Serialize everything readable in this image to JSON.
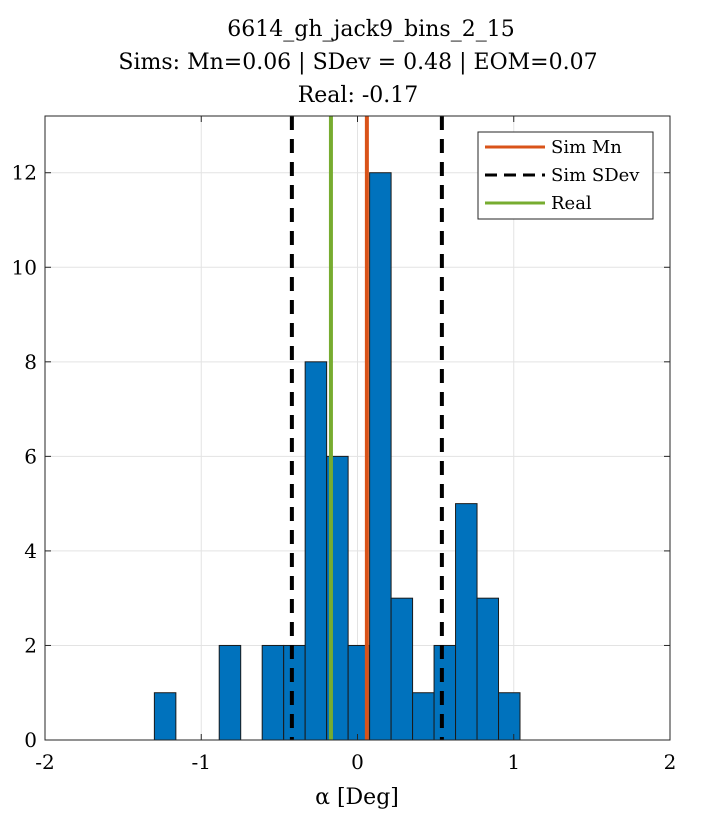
{
  "chart_data": {
    "type": "bar",
    "title": "6614_gh_jack9_bins_2_15",
    "subtitle_lines": [
      "Sims: Mn=0.06 | SDev = 0.48 | EOM=0.07",
      "Real: -0.17"
    ],
    "xlabel": "α [Deg]",
    "ylabel": "",
    "xlim": [
      -2,
      2
    ],
    "ylim": [
      0,
      13.2
    ],
    "xticks": [
      -2,
      -1,
      0,
      1,
      2
    ],
    "yticks": [
      0,
      2,
      4,
      6,
      8,
      10,
      12
    ],
    "grid": true,
    "bin_width": 0.1375,
    "bins": [
      {
        "x0": -1.3,
        "count": 1
      },
      {
        "x0": -0.885,
        "count": 2
      },
      {
        "x0": -0.61,
        "count": 2
      },
      {
        "x0": -0.4725,
        "count": 2
      },
      {
        "x0": -0.335,
        "count": 8
      },
      {
        "x0": -0.1975,
        "count": 6
      },
      {
        "x0": -0.06,
        "count": 2
      },
      {
        "x0": 0.0775,
        "count": 12
      },
      {
        "x0": 0.215,
        "count": 3
      },
      {
        "x0": 0.3525,
        "count": 1
      },
      {
        "x0": 0.49,
        "count": 2
      },
      {
        "x0": 0.6275,
        "count": 5
      },
      {
        "x0": 0.765,
        "count": 3
      },
      {
        "x0": 0.9025,
        "count": 1
      }
    ],
    "lines": [
      {
        "name": "Sim Mn",
        "x": 0.06,
        "color": "#D95319",
        "style": "solid"
      },
      {
        "name": "Sim SDev",
        "x": -0.42,
        "color": "#000000",
        "style": "dashed"
      },
      {
        "name": "Sim SDev",
        "x": 0.54,
        "color": "#000000",
        "style": "dashed"
      },
      {
        "name": "Real",
        "x": -0.17,
        "color": "#77AC30",
        "style": "solid"
      }
    ],
    "legend": {
      "position": "top-right",
      "entries": [
        {
          "label": "Sim Mn",
          "color": "#D95319",
          "style": "solid"
        },
        {
          "label": "Sim SDev",
          "color": "#000000",
          "style": "dashed"
        },
        {
          "label": "Real",
          "color": "#77AC30",
          "style": "solid"
        }
      ]
    },
    "bar_color": "#0072BD",
    "bar_edge_color": "#1a1a1a"
  }
}
